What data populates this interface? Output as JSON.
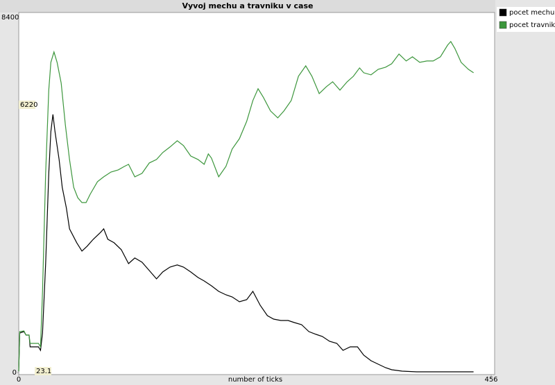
{
  "chart_data": {
    "type": "line",
    "title": "Vyvoj mechu a travniku v case",
    "x_label": "number of ticks",
    "xlim": [
      0,
      456
    ],
    "xticks": [
      0,
      456
    ],
    "ylim": [
      0,
      8400
    ],
    "yticks": [
      0,
      8400
    ],
    "annotations": [
      "6220",
      "23.1"
    ],
    "legend": "outside-right",
    "series": [
      {
        "name": "pocet mechu",
        "color": "#000000",
        "x": [
          0,
          1,
          5,
          7,
          10,
          11,
          19,
          21,
          23,
          26,
          29,
          31,
          33,
          35,
          39,
          42,
          46,
          49,
          56,
          61,
          66,
          72,
          79,
          82,
          86,
          92,
          99,
          106,
          112,
          119,
          126,
          133,
          139,
          146,
          153,
          159,
          166,
          173,
          179,
          186,
          193,
          200,
          206,
          213,
          220,
          226,
          233,
          240,
          246,
          253,
          260,
          266,
          273,
          280,
          287,
          293,
          300,
          307,
          313,
          320,
          327,
          333,
          340,
          347,
          354,
          360,
          370,
          384,
          417,
          439
        ],
        "values": [
          30,
          935,
          968,
          886,
          886,
          607,
          607,
          525,
          935,
          2576,
          4710,
          5694,
          6105,
          5694,
          5038,
          4381,
          3889,
          3397,
          3069,
          2872,
          2987,
          3151,
          3315,
          3397,
          3151,
          3069,
          2905,
          2576,
          2708,
          2609,
          2412,
          2215,
          2379,
          2494,
          2544,
          2494,
          2379,
          2248,
          2166,
          2051,
          1920,
          1838,
          1789,
          1674,
          1723,
          1920,
          1592,
          1346,
          1264,
          1231,
          1231,
          1182,
          1132,
          968,
          903,
          853,
          738,
          689,
          525,
          607,
          607,
          410,
          279,
          197,
          115,
          66,
          33,
          16,
          16,
          16
        ]
      },
      {
        "name": "pocet travniku",
        "color": "#3c963c",
        "x": [
          0,
          1,
          5,
          7,
          10,
          11,
          19,
          21,
          23,
          26,
          29,
          31,
          34,
          37,
          41,
          45,
          49,
          53,
          57,
          61,
          65,
          69,
          76,
          82,
          89,
          96,
          102,
          106,
          112,
          119,
          126,
          133,
          139,
          146,
          153,
          159,
          166,
          173,
          179,
          183,
          186,
          193,
          200,
          206,
          213,
          220,
          226,
          231,
          236,
          243,
          250,
          256,
          263,
          270,
          277,
          283,
          290,
          297,
          303,
          310,
          317,
          323,
          329,
          333,
          340,
          347,
          354,
          360,
          367,
          374,
          380,
          387,
          394,
          400,
          407,
          414,
          417,
          421,
          427,
          434,
          439
        ],
        "values": [
          30,
          968,
          985,
          886,
          886,
          689,
          689,
          607,
          1920,
          4710,
          6679,
          7335,
          7581,
          7335,
          6843,
          5858,
          5038,
          4381,
          4135,
          4020,
          4020,
          4217,
          4513,
          4628,
          4742,
          4792,
          4874,
          4923,
          4628,
          4710,
          4956,
          5038,
          5202,
          5333,
          5481,
          5366,
          5120,
          5038,
          4923,
          5169,
          5071,
          4628,
          4874,
          5284,
          5530,
          5940,
          6433,
          6712,
          6515,
          6187,
          6022,
          6187,
          6433,
          7007,
          7253,
          7007,
          6597,
          6761,
          6876,
          6679,
          6876,
          7007,
          7204,
          7089,
          7040,
          7171,
          7220,
          7302,
          7532,
          7368,
          7466,
          7335,
          7368,
          7368,
          7466,
          7745,
          7828,
          7663,
          7335,
          7171,
          7089
        ]
      }
    ]
  }
}
